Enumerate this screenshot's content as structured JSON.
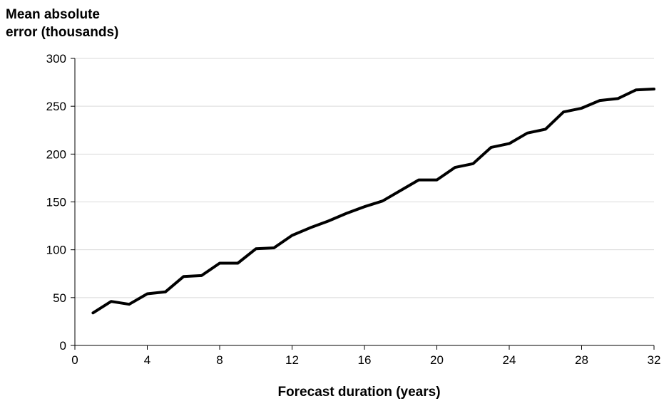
{
  "chart_data": {
    "type": "line",
    "title": "",
    "ylabel_line1": "Mean absolute",
    "ylabel_line2": "error (thousands)",
    "xlabel": "Forecast duration (years)",
    "xlim": [
      0,
      32
    ],
    "ylim": [
      0,
      300
    ],
    "xticks": [
      0,
      4,
      8,
      12,
      16,
      20,
      24,
      28,
      32
    ],
    "yticks": [
      0,
      50,
      100,
      150,
      200,
      250,
      300
    ],
    "grid": "horizontal",
    "line_color": "#000000",
    "grid_color": "#d9d9d9",
    "series": [
      {
        "x": [
          1,
          2,
          3,
          4,
          5,
          6,
          7,
          8,
          9,
          10,
          11,
          12,
          13,
          14,
          15,
          16,
          17,
          18,
          19,
          20,
          21,
          22,
          23,
          24,
          25,
          26,
          27,
          28,
          29,
          30,
          31,
          32
        ],
        "values": [
          34,
          46,
          43,
          54,
          56,
          72,
          73,
          86,
          86,
          101,
          102,
          115,
          123,
          130,
          138,
          145,
          151,
          162,
          173,
          173,
          186,
          190,
          207,
          211,
          222,
          226,
          244,
          248,
          256,
          258,
          267,
          268
        ]
      }
    ]
  }
}
